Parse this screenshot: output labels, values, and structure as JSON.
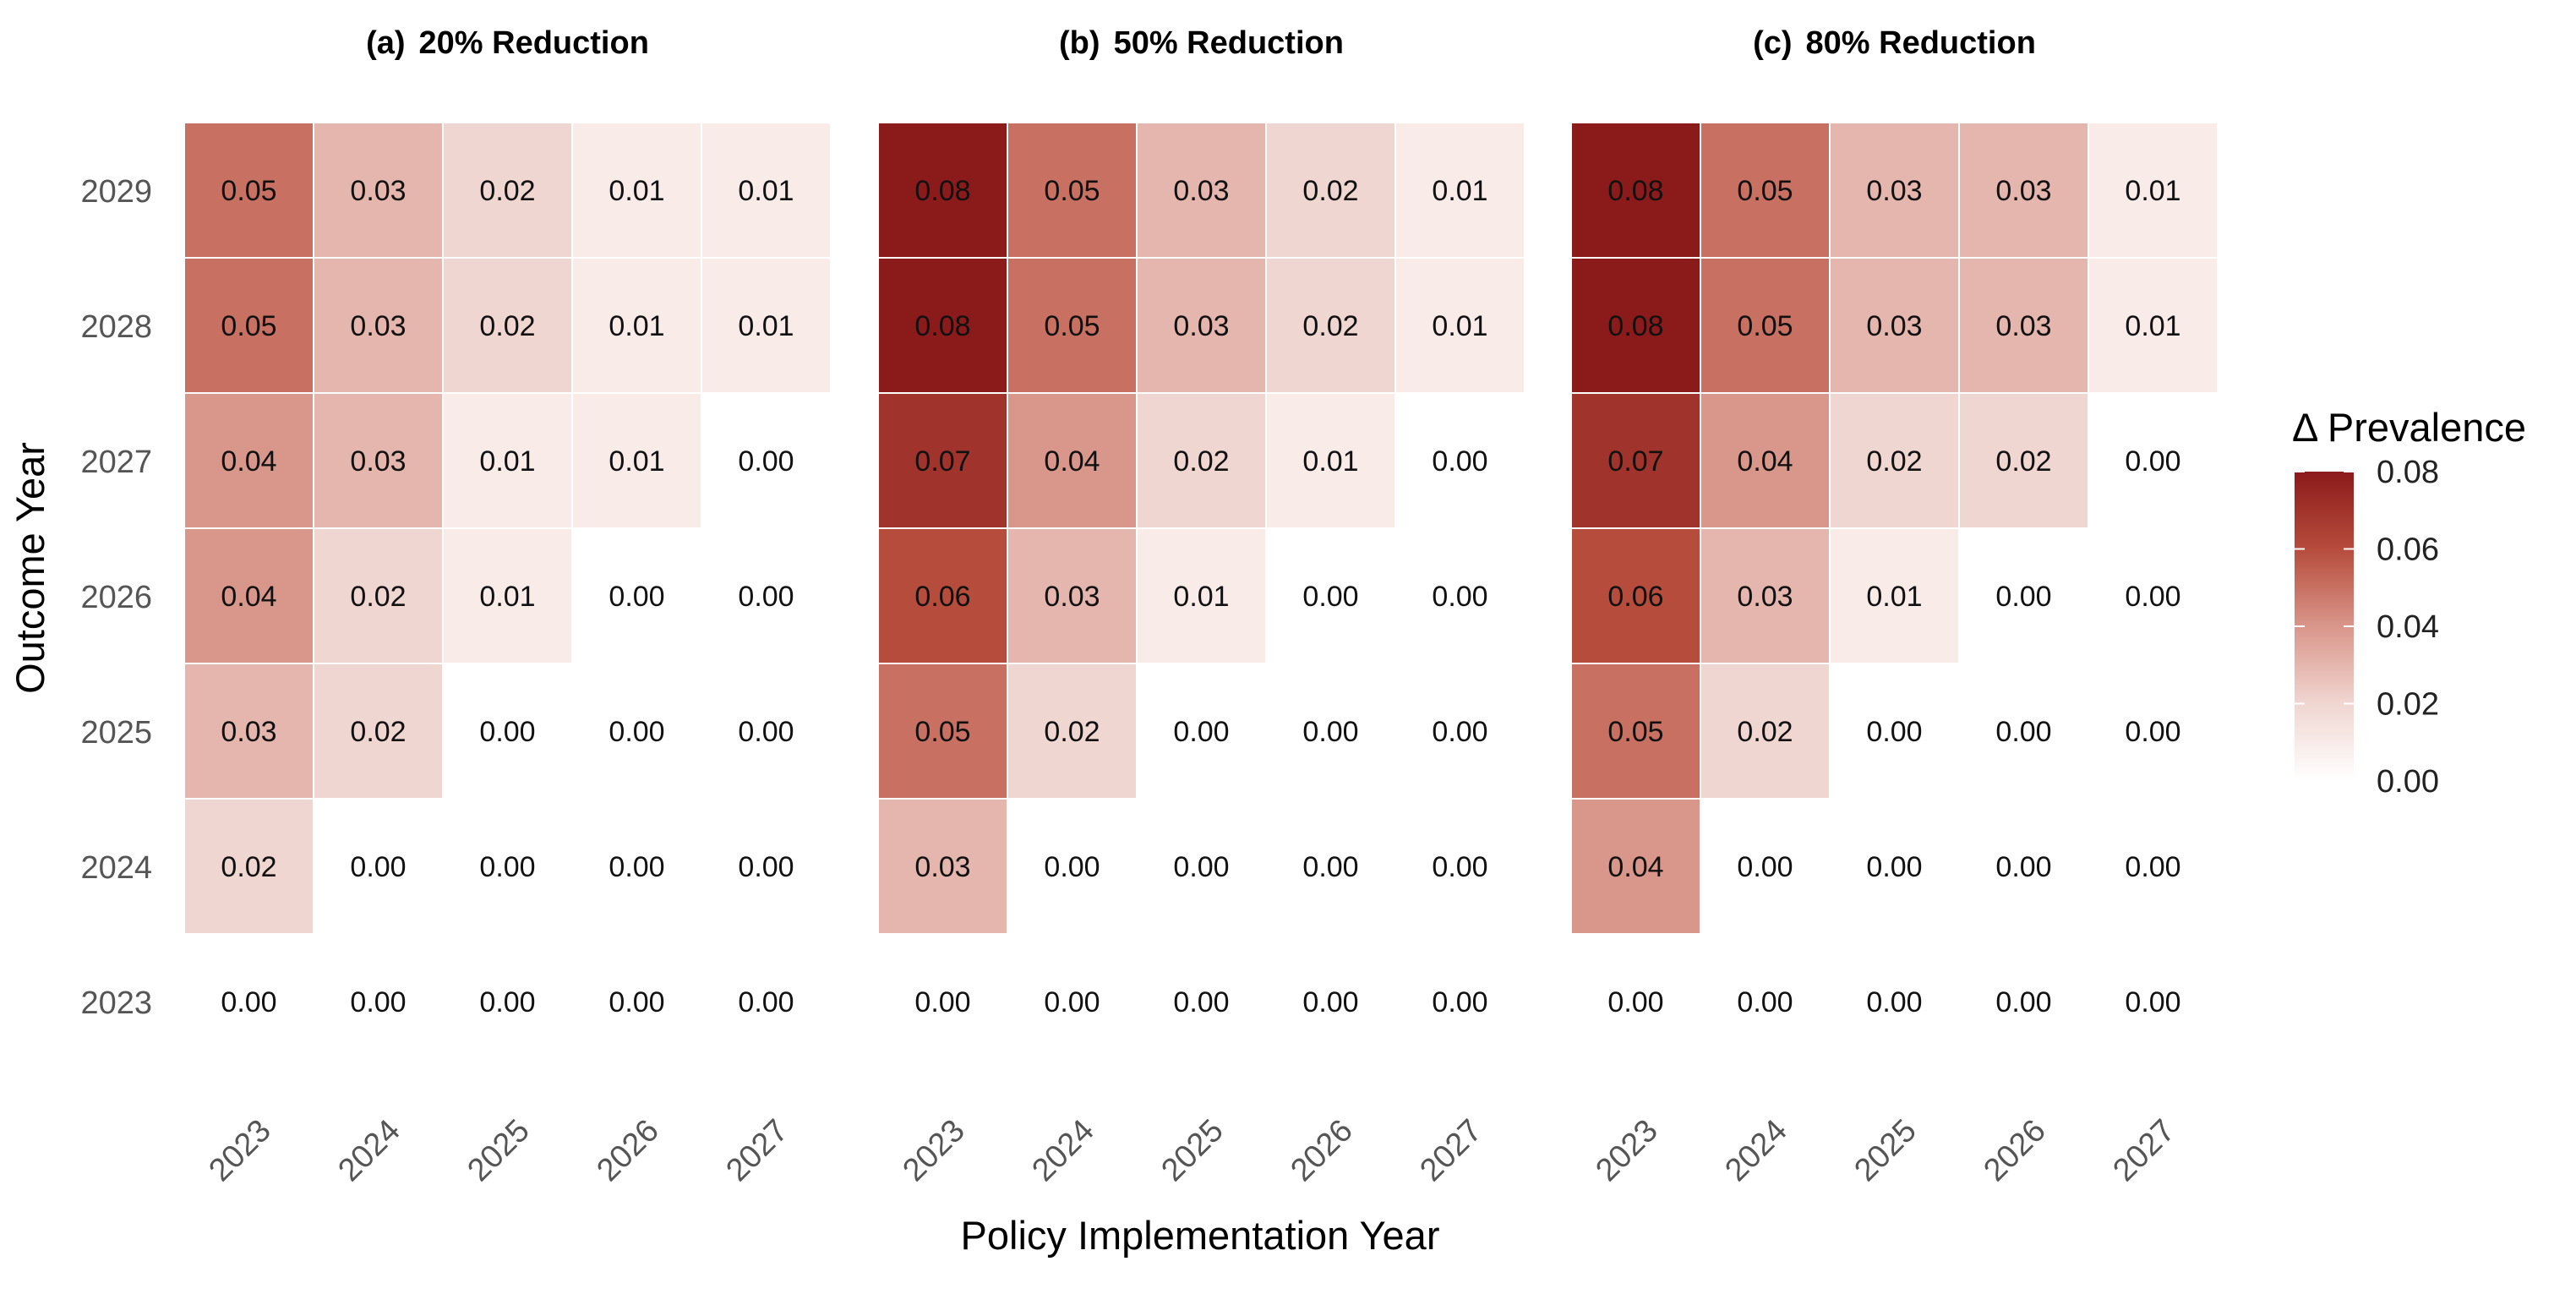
{
  "chart_data": {
    "type": "heatmap",
    "xlabel": "Policy Implementation Year",
    "ylabel": "Outcome Year",
    "x_categories": [
      "2023",
      "2024",
      "2025",
      "2026",
      "2027"
    ],
    "y_categories": [
      "2029",
      "2028",
      "2027",
      "2026",
      "2025",
      "2024",
      "2023"
    ],
    "legend": {
      "title": "Δ Prevalence",
      "range": [
        0,
        0.08
      ],
      "ticks": [
        "0.08",
        "0.06",
        "0.04",
        "0.02",
        "0.00"
      ],
      "color_low": "#ffffff",
      "color_high": "#8b1a1a",
      "placement": "right"
    },
    "panels": [
      {
        "tag": "(a)",
        "title": "20% Reduction",
        "values": [
          [
            0.05,
            0.03,
            0.02,
            0.01,
            0.01
          ],
          [
            0.05,
            0.03,
            0.02,
            0.01,
            0.01
          ],
          [
            0.04,
            0.03,
            0.01,
            0.01,
            0.0
          ],
          [
            0.04,
            0.02,
            0.01,
            0.0,
            0.0
          ],
          [
            0.03,
            0.02,
            0.0,
            0.0,
            0.0
          ],
          [
            0.02,
            0.0,
            0.0,
            0.0,
            0.0
          ],
          [
            0.0,
            0.0,
            0.0,
            0.0,
            0.0
          ]
        ]
      },
      {
        "tag": "(b)",
        "title": "50% Reduction",
        "values": [
          [
            0.08,
            0.05,
            0.03,
            0.02,
            0.01
          ],
          [
            0.08,
            0.05,
            0.03,
            0.02,
            0.01
          ],
          [
            0.07,
            0.04,
            0.02,
            0.01,
            0.0
          ],
          [
            0.06,
            0.03,
            0.01,
            0.0,
            0.0
          ],
          [
            0.05,
            0.02,
            0.0,
            0.0,
            0.0
          ],
          [
            0.03,
            0.0,
            0.0,
            0.0,
            0.0
          ],
          [
            0.0,
            0.0,
            0.0,
            0.0,
            0.0
          ]
        ]
      },
      {
        "tag": "(c)",
        "title": "80% Reduction",
        "values": [
          [
            0.08,
            0.05,
            0.03,
            0.03,
            0.01
          ],
          [
            0.08,
            0.05,
            0.03,
            0.03,
            0.01
          ],
          [
            0.07,
            0.04,
            0.02,
            0.02,
            0.0
          ],
          [
            0.06,
            0.03,
            0.01,
            0.0,
            0.0
          ],
          [
            0.05,
            0.02,
            0.0,
            0.0,
            0.0
          ],
          [
            0.04,
            0.0,
            0.0,
            0.0,
            0.0
          ],
          [
            0.0,
            0.0,
            0.0,
            0.0,
            0.0
          ]
        ]
      }
    ]
  }
}
